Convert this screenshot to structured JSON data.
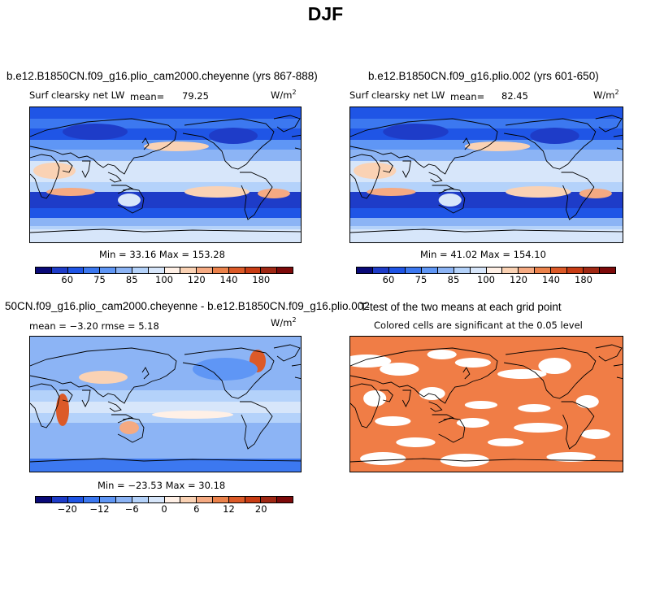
{
  "title": "DJF",
  "panel_a": {
    "case": "b.e12.B1850CN.f09_g16.plio_cam2000.cheyenne (yrs 867-888)",
    "variable": "Surf clearsky net LW",
    "mean_label": "mean=",
    "mean_value": "79.25",
    "units": "W/m",
    "units_exp": "2",
    "minmax": "Min =  33.16 Max = 153.28"
  },
  "panel_b": {
    "case": "b.e12.B1850CN.f09_g16.plio.002 (yrs 601-650)",
    "variable": "Surf clearsky net LW",
    "mean_label": "mean=",
    "mean_value": "82.45",
    "units": "W/m",
    "units_exp": "2",
    "minmax": "Min =  41.02 Max = 154.10"
  },
  "panel_c": {
    "case": "50CN.f09_g16.plio_cam2000.cheyenne - b.e12.B1850CN.f09_g16.plio.002",
    "stats": "mean =  −3.20    rmse =   5.18",
    "units": "W/m",
    "units_exp": "2",
    "minmax": "Min = −23.53 Max =  30.18"
  },
  "panel_d": {
    "title": "T-test of the two means at each grid point",
    "subtitle": "Colored cells are significant at the 0.05 level"
  },
  "colorbar_abs": {
    "colors": [
      "#0a0a78",
      "#1e3cc8",
      "#1f55e6",
      "#3c78f0",
      "#5f96f5",
      "#8cb4f5",
      "#b4d2fa",
      "#d7e6fa",
      "#fff0e6",
      "#fad2b4",
      "#f5aa82",
      "#eb824b",
      "#dc5a28",
      "#c83c14",
      "#a02814",
      "#7d0a0a"
    ],
    "labels": [
      "60",
      "75",
      "85",
      "100",
      "120",
      "140",
      "180"
    ]
  },
  "colorbar_diff": {
    "colors": [
      "#0a0a78",
      "#1e3cc8",
      "#1f55e6",
      "#3c78f0",
      "#5f96f5",
      "#8cb4f5",
      "#b4d2fa",
      "#d7e6fa",
      "#fff0e6",
      "#fad2b4",
      "#f5aa82",
      "#eb824b",
      "#dc5a28",
      "#c83c14",
      "#a02814",
      "#7d0a0a"
    ],
    "labels": [
      "−20",
      "−12",
      "−6",
      "0",
      "6",
      "12",
      "20"
    ]
  },
  "colors": {
    "ttest_significant": "#f07d46"
  }
}
